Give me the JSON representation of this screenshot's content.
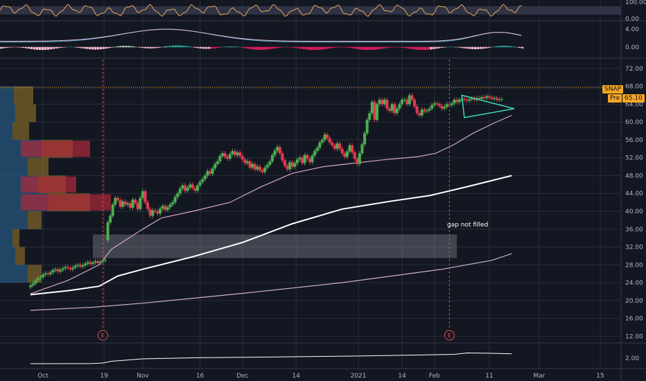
{
  "ticker": "SNAP",
  "session_label": "Pre",
  "last_price": "65.10",
  "annotation_text": "gap not filled",
  "earnings_marker_label": "E",
  "colors": {
    "background": "#131722",
    "grid": "#2a2e39",
    "up": "#26a69a",
    "down": "#ef5350",
    "up_candle": "#4caf50",
    "down_candle": "#e53950",
    "ma_fast": "#d6a6c8",
    "ma_mid": "#ffffff",
    "ma_slow": "#d0b0d0",
    "accent": "#f5a623",
    "triangle": "#3dd9b0"
  },
  "chart_data": [
    {
      "type": "line",
      "panel": "RSI",
      "ylim": [
        0,
        100
      ],
      "tick_labels": [
        "100.00",
        "0.00"
      ]
    },
    {
      "type": "bar",
      "panel": "MACD",
      "ylim": [
        -2.5,
        5.5
      ],
      "tick_labels": [
        "4.00",
        "0.00"
      ]
    },
    {
      "type": "candlestick",
      "panel": "price",
      "ylim": [
        10.5,
        74
      ],
      "y_ticks": [
        72,
        68,
        64,
        60,
        56,
        52,
        48,
        44,
        40,
        36,
        32,
        28,
        24,
        20,
        16,
        12
      ],
      "y_tick_labels": [
        "72.00",
        "68.00",
        "64.00",
        "60.00",
        "56.00",
        "52.00",
        "48.00",
        "44.00",
        "40.00",
        "36.00",
        "32.00",
        "28.00",
        "24.00",
        "20.00",
        "16.00",
        "12.00"
      ],
      "x_tick_labels": [
        "Oct",
        "19",
        "Nov",
        "16",
        "Dec",
        "14",
        "2021",
        "14",
        "Feb",
        "11",
        "Mar",
        "15"
      ],
      "x_tick_days": [
        0,
        49,
        80,
        126,
        160,
        203,
        253,
        288,
        314,
        358,
        398,
        447
      ],
      "candle_days": [
        -10,
        -8,
        -6,
        -4,
        -2,
        0,
        2,
        4,
        6,
        8,
        10,
        12,
        14,
        16,
        18,
        20,
        22,
        24,
        26,
        28,
        30,
        32,
        34,
        36,
        38,
        40,
        42,
        44,
        46,
        48,
        50,
        52,
        54,
        56,
        58,
        60,
        62,
        64,
        66,
        68,
        70,
        72,
        74,
        76,
        78,
        80,
        82,
        84,
        86,
        88,
        90,
        92,
        94,
        96,
        98,
        100,
        102,
        104,
        106,
        108,
        110,
        112,
        114,
        116,
        118,
        120,
        122,
        124,
        126,
        128,
        130,
        132,
        134,
        136,
        138,
        140,
        142,
        144,
        146,
        148,
        150,
        152,
        154,
        156,
        158,
        160,
        162,
        164,
        166,
        168,
        170,
        172,
        174,
        176,
        178,
        180,
        182,
        184,
        186,
        188,
        190,
        192,
        194,
        196,
        198,
        200,
        202,
        204,
        206,
        208,
        210,
        212,
        214,
        216,
        218,
        220,
        222,
        224,
        226,
        228,
        230,
        232,
        234,
        236,
        238,
        240,
        242,
        244,
        246,
        248,
        250,
        252,
        254,
        256,
        258,
        260,
        262,
        264,
        266,
        268,
        270,
        272,
        274,
        276,
        278,
        280,
        282,
        284,
        286,
        288,
        290,
        292,
        294,
        296,
        298,
        300,
        302,
        304,
        306,
        308,
        310,
        312,
        314,
        316,
        318,
        320,
        322,
        324,
        326,
        328,
        330,
        332,
        334,
        336,
        338,
        340,
        342,
        344,
        346,
        348,
        350,
        352,
        354,
        356,
        358,
        360,
        362,
        364,
        366,
        368,
        370,
        372,
        374,
        376
      ],
      "candle_open": [
        23.0,
        23.4,
        23.8,
        24.5,
        25.0,
        25.2,
        25.8,
        26.1,
        25.9,
        26.3,
        26.8,
        27.0,
        26.5,
        26.9,
        27.2,
        27.5,
        27.3,
        27.0,
        27.4,
        27.8,
        28.0,
        27.6,
        27.9,
        28.3,
        28.6,
        28.2,
        28.5,
        28.8,
        28.4,
        28.7,
        29.0,
        33.5,
        37.5,
        39.0,
        41.5,
        43.0,
        42.5,
        41.0,
        42.2,
        41.5,
        41.8,
        40.8,
        42.6,
        41.9,
        40.5,
        43.0,
        44.5,
        42.0,
        40.5,
        39.0,
        40.2,
        40.0,
        39.5,
        40.6,
        41.2,
        40.3,
        40.9,
        41.5,
        42.0,
        43.2,
        44.0,
        45.1,
        45.8,
        44.6,
        45.3,
        46.0,
        45.2,
        44.6,
        45.8,
        46.6,
        47.2,
        48.0,
        49.0,
        48.4,
        49.6,
        50.6,
        51.2,
        52.4,
        53.0,
        52.2,
        51.8,
        52.8,
        53.5,
        52.6,
        53.2,
        52.4,
        51.6,
        50.8,
        51.2,
        49.8,
        50.6,
        49.4,
        50.0,
        49.2,
        48.8,
        49.8,
        50.4,
        51.2,
        52.6,
        53.6,
        54.4,
        53.0,
        51.4,
        50.2,
        49.4,
        51.0,
        50.0,
        50.8,
        51.6,
        52.0,
        50.8,
        52.6,
        51.8,
        51.0,
        52.5,
        53.5,
        54.2,
        55.4,
        56.0,
        57.2,
        56.4,
        55.4,
        54.8,
        54.0,
        55.2,
        54.0,
        53.0,
        52.2,
        53.4,
        54.8,
        53.2,
        51.8,
        50.6,
        53.0,
        55.0,
        57.5,
        60.5,
        62.0,
        64.5,
        60.5,
        64.0,
        65.0,
        64.0,
        65.0,
        63.0,
        62.5,
        64.0,
        62.0,
        63.0,
        64.0,
        65.0,
        65.0,
        64.0,
        66.0,
        65.0,
        63.5,
        62.0,
        61.5,
        62.8,
        62.4,
        62.6,
        63.0,
        63.8,
        64.2,
        64.0,
        63.6,
        63.0,
        63.4,
        64.0,
        63.8,
        64.2,
        65.0,
        64.5,
        65.0,
        65.2,
        65.0,
        64.8,
        65.1,
        65.3,
        65.0,
        65.4,
        65.2,
        65.6,
        65.4,
        65.8,
        65.5,
        65.2,
        65.4,
        65.0,
        65.1
      ],
      "candle_close": [
        23.4,
        23.8,
        24.5,
        25.0,
        25.2,
        25.8,
        26.1,
        25.9,
        26.3,
        26.8,
        27.0,
        26.5,
        26.9,
        27.2,
        27.5,
        27.3,
        27.0,
        27.4,
        27.8,
        28.0,
        27.6,
        27.9,
        28.3,
        28.6,
        28.2,
        28.5,
        28.8,
        28.4,
        28.7,
        29.0,
        29.2,
        37.5,
        39.0,
        41.5,
        43.0,
        42.5,
        41.0,
        42.2,
        41.5,
        41.8,
        40.8,
        42.6,
        41.9,
        40.5,
        43.0,
        44.5,
        42.0,
        40.5,
        39.0,
        40.2,
        40.0,
        39.5,
        40.6,
        41.2,
        40.3,
        40.9,
        41.5,
        42.0,
        43.2,
        44.0,
        45.1,
        45.8,
        44.6,
        45.3,
        46.0,
        45.2,
        44.6,
        45.8,
        46.6,
        47.2,
        48.0,
        49.0,
        48.4,
        49.6,
        50.6,
        51.2,
        52.4,
        53.0,
        52.2,
        51.8,
        52.8,
        53.5,
        52.6,
        53.2,
        52.4,
        51.6,
        50.8,
        51.2,
        49.8,
        50.6,
        49.4,
        50.0,
        49.2,
        48.8,
        49.8,
        50.4,
        51.2,
        52.6,
        53.6,
        54.4,
        53.0,
        51.4,
        50.2,
        49.4,
        51.0,
        50.0,
        50.8,
        51.6,
        52.0,
        50.8,
        52.6,
        51.8,
        51.0,
        52.5,
        53.5,
        54.2,
        55.4,
        56.0,
        57.2,
        56.4,
        55.4,
        54.8,
        54.0,
        55.2,
        54.0,
        53.0,
        52.2,
        53.4,
        54.8,
        53.2,
        51.8,
        50.6,
        53.0,
        55.0,
        57.5,
        60.5,
        62.0,
        64.5,
        60.5,
        64.0,
        65.0,
        64.0,
        65.0,
        63.0,
        62.5,
        64.0,
        62.0,
        63.0,
        64.0,
        65.0,
        65.0,
        64.0,
        66.0,
        65.0,
        63.5,
        62.0,
        61.5,
        62.8,
        62.4,
        62.6,
        63.0,
        63.8,
        64.2,
        64.0,
        63.6,
        63.0,
        63.4,
        64.0,
        63.8,
        64.2,
        65.0,
        64.5,
        65.0,
        65.2,
        65.0,
        64.8,
        65.1,
        65.3,
        65.0,
        65.4,
        65.2,
        65.6,
        65.4,
        65.8,
        65.5,
        65.2,
        65.4,
        65.0,
        65.1,
        65.1
      ],
      "ma_fast_days": [
        -10,
        20,
        45,
        55,
        80,
        95,
        120,
        150,
        175,
        200,
        225,
        250,
        275,
        300,
        315,
        330,
        345,
        362,
        376
      ],
      "ma_fast_values": [
        21.5,
        24.5,
        28.0,
        31.5,
        36.0,
        38.5,
        40.0,
        42.0,
        45.5,
        48.5,
        50.0,
        50.8,
        51.6,
        52.2,
        53.0,
        55.0,
        57.5,
        59.8,
        61.5
      ],
      "ma_mid_days": [
        -10,
        20,
        45,
        60,
        80,
        120,
        160,
        200,
        240,
        280,
        310,
        340,
        376
      ],
      "ma_mid_values": [
        21.3,
        22.2,
        23.2,
        25.5,
        27.0,
        29.8,
        33.0,
        37.2,
        40.5,
        42.3,
        43.5,
        45.5,
        48.0
      ],
      "ma_slow_days": [
        -10,
        40,
        80,
        120,
        160,
        200,
        240,
        280,
        320,
        360,
        376
      ],
      "ma_slow_values": [
        17.8,
        18.5,
        19.4,
        20.5,
        21.6,
        22.8,
        24.0,
        25.5,
        27.0,
        29.0,
        30.5
      ],
      "gap_box": {
        "day_start": 30,
        "day_end": 332,
        "y_low": 29.5,
        "y_high": 34.8
      },
      "earnings_days": [
        48,
        326
      ],
      "triangle_points": [
        [
          336,
          66.0
        ],
        [
          378,
          63.0
        ],
        [
          338,
          61.0
        ]
      ]
    },
    {
      "type": "line",
      "panel": "volume_indicator",
      "ylim": [
        0.5,
        4.0
      ],
      "tick_labels": [
        "2.00"
      ],
      "x": [
        -10,
        40,
        48,
        55,
        80,
        120,
        160,
        200,
        250,
        300,
        330,
        340,
        360,
        376
      ],
      "values": [
        1.2,
        1.22,
        1.3,
        1.55,
        1.9,
        2.05,
        2.12,
        2.2,
        2.3,
        2.45,
        2.55,
        2.75,
        2.7,
        2.62
      ]
    }
  ]
}
